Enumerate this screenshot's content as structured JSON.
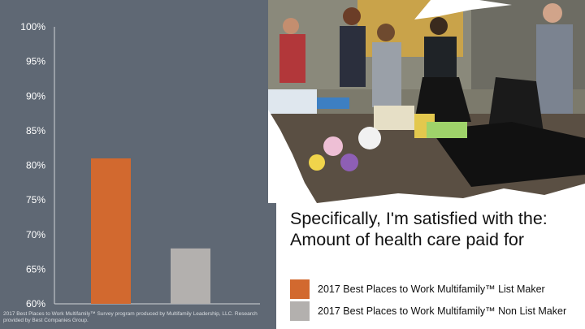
{
  "chart_data": {
    "type": "bar",
    "categories": [
      "2017 Best Places to Work Multifamily™ List Maker",
      "2017 Best Places to Work Multifamily™ Non List Maker"
    ],
    "values": [
      81,
      68
    ],
    "colors": [
      "#d2692f",
      "#b3b0ae"
    ],
    "title": "Specifically, I'm satisfied with the: Amount of health care paid for",
    "xlabel": "",
    "ylabel": "",
    "ylim": [
      60,
      100
    ],
    "yticks": [
      "60%",
      "65%",
      "70%",
      "75%",
      "80%",
      "85%",
      "90%",
      "95%",
      "100%"
    ],
    "ytick_values": [
      60,
      65,
      70,
      75,
      80,
      85,
      90,
      95,
      100
    ],
    "legend": [
      "2017 Best Places to Work Multifamily™ List Maker",
      "2017 Best Places to Work Multifamily™ Non List Maker"
    ],
    "legend_position": "bottom-right",
    "grid": false
  },
  "footer": "2017 Best Places to Work Multifamily™ Survey program produced by Multifamily Leadership, LLC. Research provided by Best Companies Group.",
  "colors": {
    "panel": "#5f6874",
    "axis": "#d0d4d8"
  }
}
